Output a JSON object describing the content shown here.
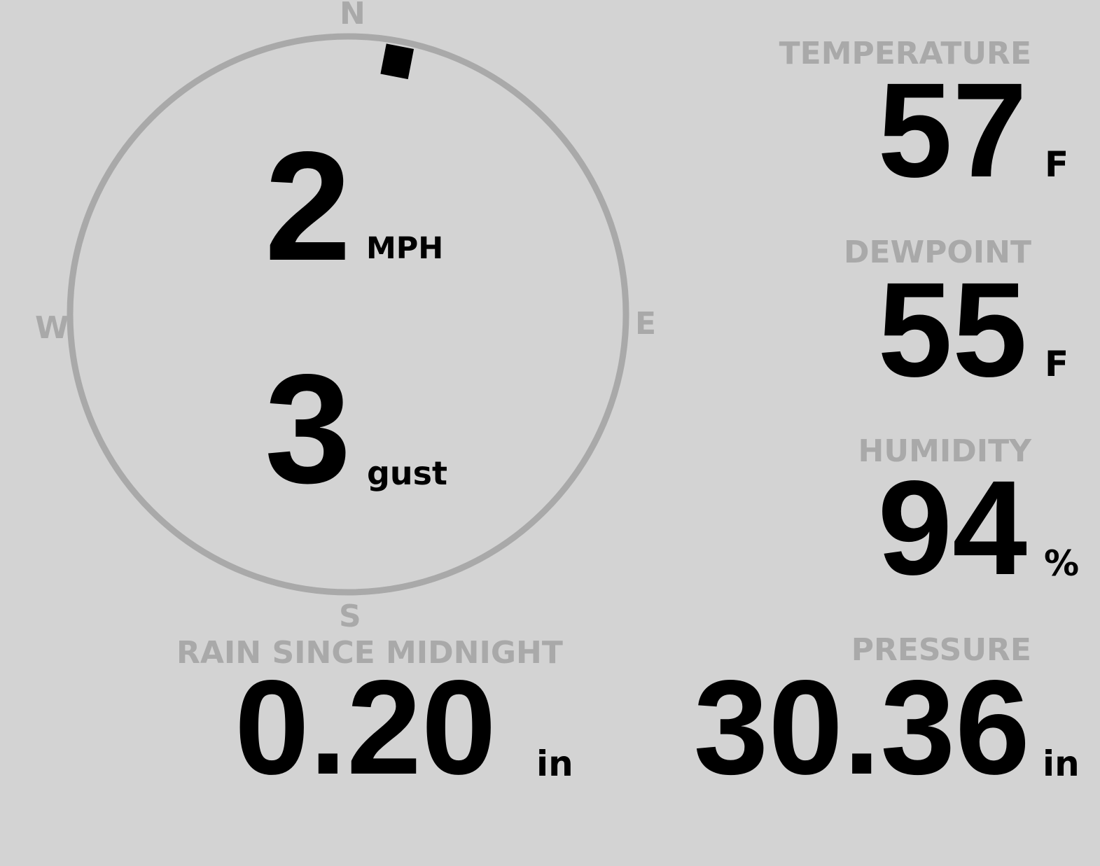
{
  "colors": {
    "background": "#d3d3d3",
    "label": "#a9a9a9",
    "value": "#000000",
    "compass_ring": "#a9a9a9"
  },
  "wind": {
    "speed": "2",
    "speed_unit": "MPH",
    "gust": "3",
    "gust_unit": "gust",
    "direction_deg": 11,
    "compass": {
      "n": "N",
      "e": "E",
      "s": "S",
      "w": "W"
    }
  },
  "temperature": {
    "label": "TEMPERATURE",
    "value": "57",
    "unit": "F"
  },
  "dewpoint": {
    "label": "DEWPOINT",
    "value": "55",
    "unit": "F"
  },
  "humidity": {
    "label": "HUMIDITY",
    "value": "94",
    "unit": "%"
  },
  "rain": {
    "label": "RAIN SINCE MIDNIGHT",
    "value": "0.20",
    "unit": "in"
  },
  "pressure": {
    "label": "PRESSURE",
    "value": "30.36",
    "unit": "in"
  }
}
